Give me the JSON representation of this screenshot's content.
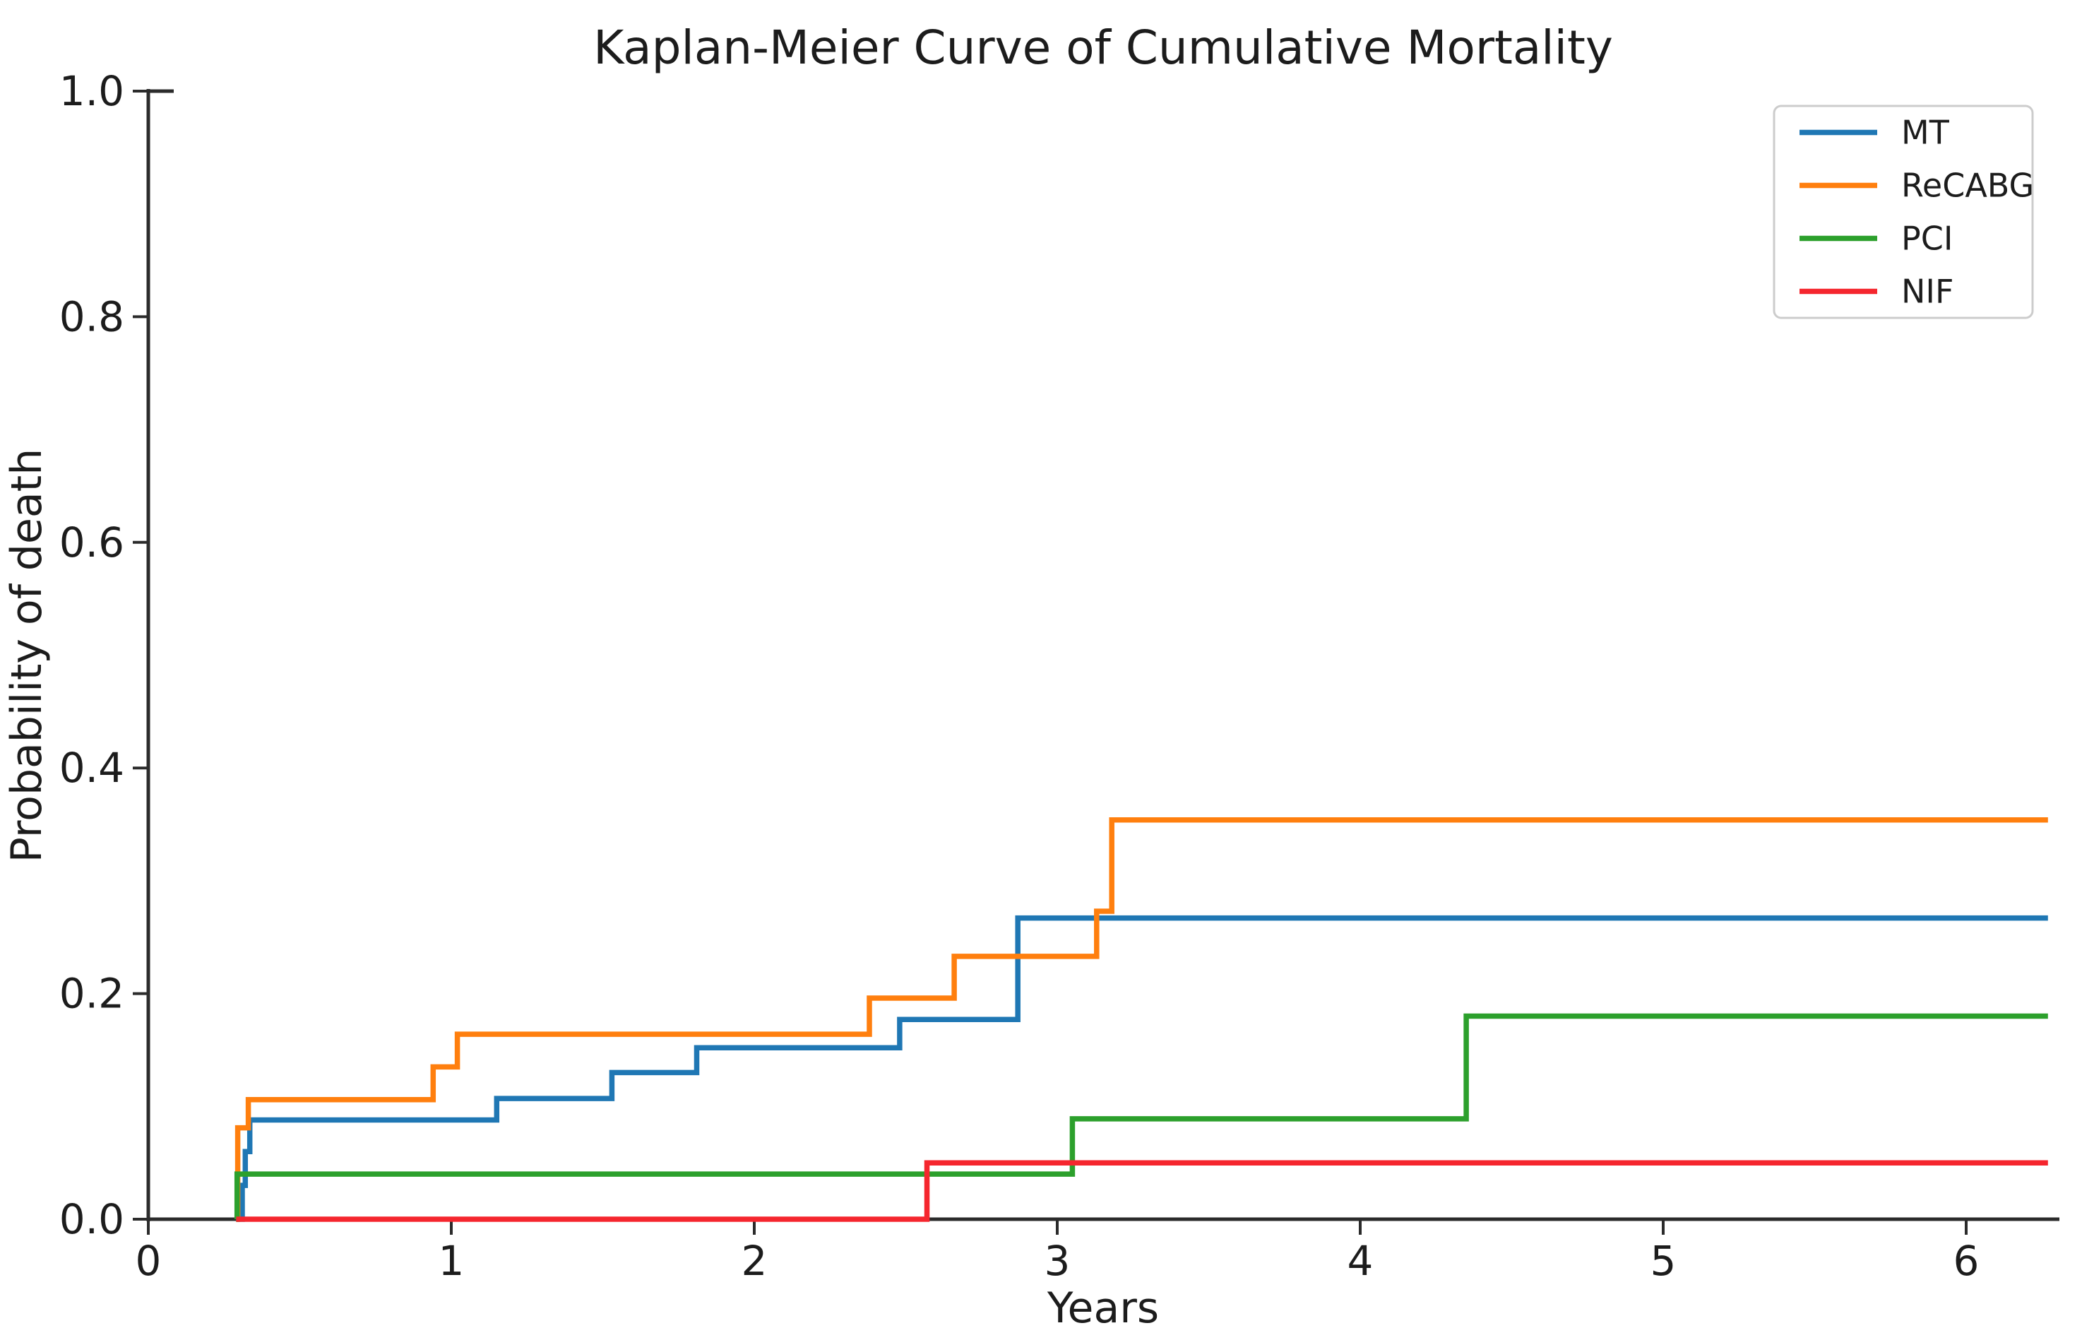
{
  "chart_data": {
    "type": "line",
    "subtype": "kaplan-meier-step",
    "title": "Kaplan-Meier Curve of Cumulative Mortality",
    "xlabel": "Years",
    "ylabel": "Probability of death",
    "xlim": [
      0,
      6.31
    ],
    "ylim": [
      0,
      1.0
    ],
    "xticks": [
      0,
      1,
      2,
      3,
      4,
      5,
      6
    ],
    "yticks": [
      "0.0",
      "0.2",
      "0.4",
      "0.6",
      "0.8",
      "1.0"
    ],
    "grid": false,
    "legend_position": "upper right",
    "axis_color": "#2b2b2b",
    "legend_border_color": "#cccccc",
    "series": [
      {
        "name": "MT",
        "color": "#1f77b4",
        "points": [
          [
            0.29,
            0
          ],
          [
            0.31,
            0
          ],
          [
            0.31,
            0.03
          ],
          [
            0.32,
            0.03
          ],
          [
            0.32,
            0.06
          ],
          [
            0.335,
            0.06
          ],
          [
            0.335,
            0.088
          ],
          [
            1.15,
            0.088
          ],
          [
            1.15,
            0.107
          ],
          [
            1.53,
            0.107
          ],
          [
            1.53,
            0.13
          ],
          [
            1.81,
            0.13
          ],
          [
            1.81,
            0.152
          ],
          [
            2.48,
            0.152
          ],
          [
            2.48,
            0.177
          ],
          [
            2.87,
            0.177
          ],
          [
            2.87,
            0.267
          ],
          [
            6.27,
            0.267
          ]
        ]
      },
      {
        "name": "ReCABG",
        "color": "#ff7f0e",
        "points": [
          [
            0.29,
            0
          ],
          [
            0.295,
            0
          ],
          [
            0.295,
            0.081
          ],
          [
            0.33,
            0.081
          ],
          [
            0.33,
            0.106
          ],
          [
            0.94,
            0.106
          ],
          [
            0.94,
            0.135
          ],
          [
            1.02,
            0.135
          ],
          [
            1.02,
            0.164
          ],
          [
            2.38,
            0.164
          ],
          [
            2.38,
            0.196
          ],
          [
            2.66,
            0.196
          ],
          [
            2.66,
            0.233
          ],
          [
            3.13,
            0.233
          ],
          [
            3.13,
            0.273
          ],
          [
            3.18,
            0.273
          ],
          [
            3.18,
            0.354
          ],
          [
            6.27,
            0.354
          ]
        ]
      },
      {
        "name": "PCI",
        "color": "#2ca02c",
        "points": [
          [
            0.29,
            0
          ],
          [
            0.293,
            0
          ],
          [
            0.293,
            0.04
          ],
          [
            3.05,
            0.04
          ],
          [
            3.05,
            0.089
          ],
          [
            4.35,
            0.089
          ],
          [
            4.35,
            0.18
          ],
          [
            6.27,
            0.18
          ]
        ]
      },
      {
        "name": "NIF",
        "color": "#f5262e",
        "points": [
          [
            0.29,
            0
          ],
          [
            2.57,
            0
          ],
          [
            2.57,
            0.05
          ],
          [
            6.27,
            0.05
          ]
        ]
      }
    ]
  }
}
